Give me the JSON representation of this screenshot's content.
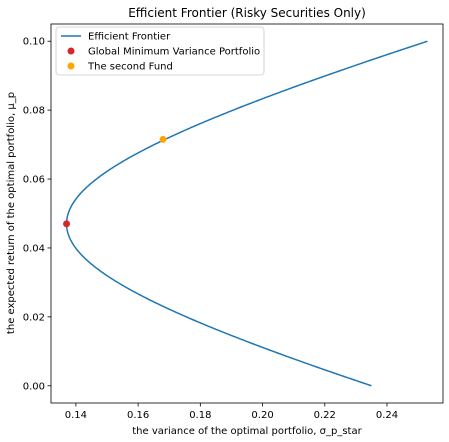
{
  "chart_data": {
    "type": "line",
    "title": "Efficient Frontier (Risky Securities Only)",
    "xlabel": "the variance of the optimal portfolio, σ_p_star",
    "ylabel": "the expected return of the optimal portfolio, μ_p",
    "xlim": [
      0.132,
      0.258
    ],
    "ylim": [
      -0.005,
      0.105
    ],
    "xticks": [
      0.14,
      0.16,
      0.18,
      0.2,
      0.22,
      0.24
    ],
    "xtick_labels": [
      "0.14",
      "0.16",
      "0.18",
      "0.20",
      "0.22",
      "0.24"
    ],
    "yticks": [
      0.0,
      0.02,
      0.04,
      0.06,
      0.08,
      0.1
    ],
    "ytick_labels": [
      "0.00",
      "0.02",
      "0.04",
      "0.06",
      "0.08",
      "0.10"
    ],
    "grid": false,
    "legend_position": "top-left",
    "series": [
      {
        "name": "Efficient Frontier",
        "kind": "line",
        "color": "#1f77b4",
        "mu_min": 0.0,
        "mu_max": 0.1,
        "gmv_sigma": 0.137,
        "gmv_mu": 0.047,
        "endpoint_sigma_at_mu_0": 0.235,
        "endpoint_sigma_at_mu_010": 0.253
      },
      {
        "name": "Global Minimum Variance Portfolio",
        "kind": "scatter",
        "color": "#d62728",
        "points": [
          {
            "x": 0.137,
            "y": 0.047
          }
        ]
      },
      {
        "name": "The second Fund",
        "kind": "scatter",
        "color": "#ffa500",
        "points": [
          {
            "x": 0.168,
            "y": 0.0715
          }
        ]
      }
    ]
  }
}
